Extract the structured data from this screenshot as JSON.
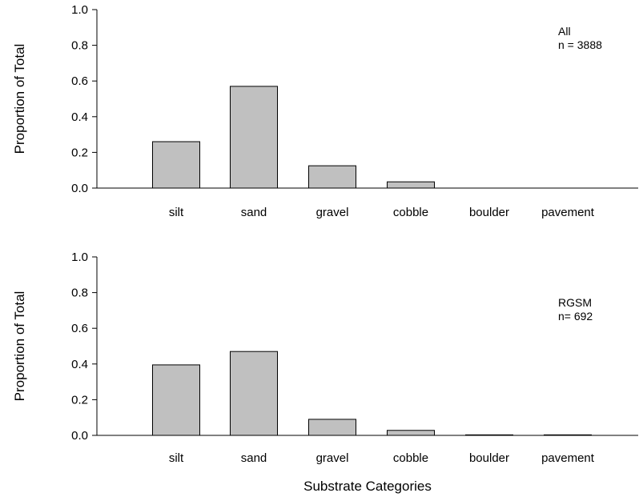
{
  "colors": {
    "bar_fill": "#c0c0c0",
    "bar_stroke": "#000000",
    "axis": "#000000"
  },
  "xlabel": "Substrate Categories",
  "chart_data": [
    {
      "type": "bar",
      "categories": [
        "silt",
        "sand",
        "gravel",
        "cobble",
        "boulder",
        "pavement"
      ],
      "values": [
        0.26,
        0.57,
        0.125,
        0.035,
        0.0,
        0.0
      ],
      "ylabel": "Proportion of Total",
      "ylim": [
        0,
        1.0
      ],
      "yticks": [
        "0.0",
        "0.2",
        "0.4",
        "0.6",
        "0.8",
        "1.0"
      ],
      "annotation": [
        "All",
        "n = 3888"
      ],
      "grid": false
    },
    {
      "type": "bar",
      "categories": [
        "silt",
        "sand",
        "gravel",
        "cobble",
        "boulder",
        "pavement"
      ],
      "values": [
        0.395,
        0.47,
        0.09,
        0.028,
        0.003,
        0.003
      ],
      "ylabel": "Proportion of Total",
      "ylim": [
        0,
        1.0
      ],
      "yticks": [
        "0.0",
        "0.2",
        "0.4",
        "0.6",
        "0.8",
        "1.0"
      ],
      "annotation": [
        "RGSM",
        "n= 692"
      ],
      "grid": false
    }
  ]
}
